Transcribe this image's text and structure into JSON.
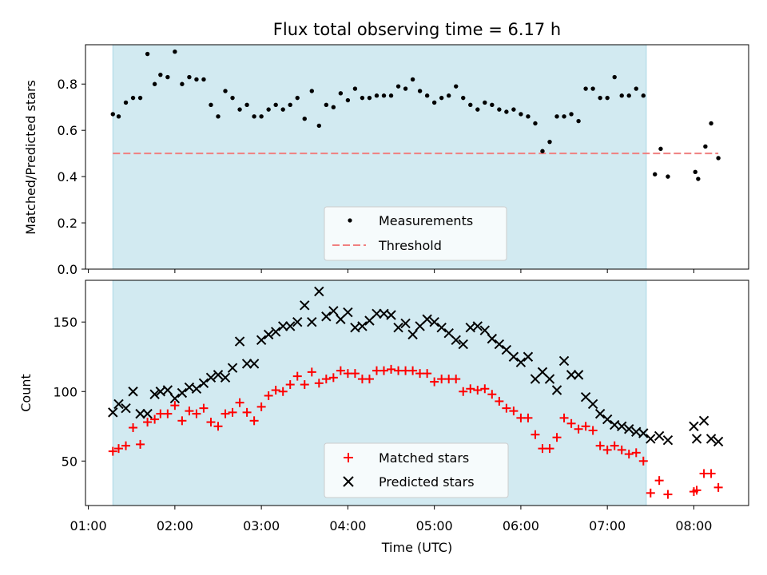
{
  "chart_data": [
    {
      "type": "scatter",
      "title": "Flux total observing time = 6.17 h",
      "ylabel": "Matched/Predicted stars",
      "xlabel": "",
      "ylim": [
        0,
        0.97
      ],
      "yticks": [
        "0.0",
        "0.2",
        "0.4",
        "0.6",
        "0.8"
      ],
      "grid": false,
      "legend_position": "bottom-center",
      "shaded_interval": [
        "01:17",
        "07:27"
      ],
      "shade_color": "#add8e6",
      "series": [
        {
          "name": "Measurements",
          "marker": "dot",
          "color": "#000000",
          "points": [
            [
              "01:17",
              0.67
            ],
            [
              "01:21",
              0.66
            ],
            [
              "01:26",
              0.72
            ],
            [
              "01:31",
              0.74
            ],
            [
              "01:36",
              0.74
            ],
            [
              "01:41",
              0.93
            ],
            [
              "01:46",
              0.8
            ],
            [
              "01:50",
              0.84
            ],
            [
              "01:55",
              0.83
            ],
            [
              "02:00",
              0.94
            ],
            [
              "02:05",
              0.8
            ],
            [
              "02:10",
              0.83
            ],
            [
              "02:15",
              0.82
            ],
            [
              "02:20",
              0.82
            ],
            [
              "02:25",
              0.71
            ],
            [
              "02:30",
              0.66
            ],
            [
              "02:35",
              0.77
            ],
            [
              "02:40",
              0.74
            ],
            [
              "02:45",
              0.69
            ],
            [
              "02:50",
              0.71
            ],
            [
              "02:55",
              0.66
            ],
            [
              "03:00",
              0.66
            ],
            [
              "03:05",
              0.69
            ],
            [
              "03:10",
              0.71
            ],
            [
              "03:15",
              0.69
            ],
            [
              "03:20",
              0.71
            ],
            [
              "03:25",
              0.74
            ],
            [
              "03:30",
              0.65
            ],
            [
              "03:35",
              0.77
            ],
            [
              "03:40",
              0.62
            ],
            [
              "03:45",
              0.71
            ],
            [
              "03:50",
              0.7
            ],
            [
              "03:55",
              0.76
            ],
            [
              "04:00",
              0.73
            ],
            [
              "04:05",
              0.78
            ],
            [
              "04:10",
              0.74
            ],
            [
              "04:15",
              0.74
            ],
            [
              "04:20",
              0.75
            ],
            [
              "04:25",
              0.75
            ],
            [
              "04:30",
              0.75
            ],
            [
              "04:35",
              0.79
            ],
            [
              "04:40",
              0.78
            ],
            [
              "04:45",
              0.82
            ],
            [
              "04:50",
              0.77
            ],
            [
              "04:55",
              0.75
            ],
            [
              "05:00",
              0.72
            ],
            [
              "05:05",
              0.74
            ],
            [
              "05:10",
              0.75
            ],
            [
              "05:15",
              0.79
            ],
            [
              "05:20",
              0.74
            ],
            [
              "05:25",
              0.71
            ],
            [
              "05:30",
              0.69
            ],
            [
              "05:35",
              0.72
            ],
            [
              "05:40",
              0.71
            ],
            [
              "05:45",
              0.69
            ],
            [
              "05:50",
              0.68
            ],
            [
              "05:55",
              0.69
            ],
            [
              "06:00",
              0.67
            ],
            [
              "06:05",
              0.66
            ],
            [
              "06:10",
              0.63
            ],
            [
              "06:15",
              0.51
            ],
            [
              "06:20",
              0.55
            ],
            [
              "06:25",
              0.66
            ],
            [
              "06:30",
              0.66
            ],
            [
              "06:35",
              0.67
            ],
            [
              "06:40",
              0.64
            ],
            [
              "06:45",
              0.78
            ],
            [
              "06:50",
              0.78
            ],
            [
              "06:55",
              0.74
            ],
            [
              "07:00",
              0.74
            ],
            [
              "07:05",
              0.83
            ],
            [
              "07:10",
              0.75
            ],
            [
              "07:15",
              0.75
            ],
            [
              "07:20",
              0.78
            ],
            [
              "07:25",
              0.75
            ],
            [
              "07:33",
              0.41
            ],
            [
              "07:37",
              0.52
            ],
            [
              "07:42",
              0.4
            ],
            [
              "08:01",
              0.42
            ],
            [
              "08:03",
              0.39
            ],
            [
              "08:08",
              0.53
            ],
            [
              "08:12",
              0.63
            ],
            [
              "08:17",
              0.48
            ]
          ]
        },
        {
          "name": "Threshold",
          "marker": "dashed-line",
          "color": "#f08080",
          "points": [
            [
              "01:17",
              0.5
            ],
            [
              "08:17",
              0.5
            ]
          ]
        }
      ]
    },
    {
      "type": "scatter",
      "title": "",
      "xlabel": "Time (UTC)",
      "ylabel": "Count",
      "ylim": [
        18,
        180
      ],
      "yticks": [
        "50",
        "100",
        "150"
      ],
      "xlim": [
        "00:58",
        "08:38"
      ],
      "xticks": [
        "01:00",
        "02:00",
        "03:00",
        "04:00",
        "05:00",
        "06:00",
        "07:00",
        "08:00"
      ],
      "grid": false,
      "legend_position": "bottom-center",
      "shaded_interval": [
        "01:17",
        "07:27"
      ],
      "shade_color": "#add8e6",
      "series": [
        {
          "name": "Matched stars",
          "marker": "plus",
          "color": "#ff0000",
          "points": [
            [
              "01:17",
              57
            ],
            [
              "01:21",
              59
            ],
            [
              "01:26",
              61
            ],
            [
              "01:31",
              74
            ],
            [
              "01:36",
              62
            ],
            [
              "01:41",
              78
            ],
            [
              "01:46",
              80
            ],
            [
              "01:50",
              84
            ],
            [
              "01:55",
              84
            ],
            [
              "02:00",
              90
            ],
            [
              "02:05",
              79
            ],
            [
              "02:10",
              86
            ],
            [
              "02:15",
              84
            ],
            [
              "02:20",
              88
            ],
            [
              "02:25",
              78
            ],
            [
              "02:30",
              75
            ],
            [
              "02:35",
              84
            ],
            [
              "02:40",
              85
            ],
            [
              "02:45",
              92
            ],
            [
              "02:50",
              85
            ],
            [
              "02:55",
              79
            ],
            [
              "03:00",
              89
            ],
            [
              "03:05",
              97
            ],
            [
              "03:10",
              101
            ],
            [
              "03:15",
              100
            ],
            [
              "03:20",
              105
            ],
            [
              "03:25",
              111
            ],
            [
              "03:30",
              105
            ],
            [
              "03:35",
              114
            ],
            [
              "03:40",
              106
            ],
            [
              "03:45",
              109
            ],
            [
              "03:50",
              110
            ],
            [
              "03:55",
              115
            ],
            [
              "04:00",
              113
            ],
            [
              "04:05",
              113
            ],
            [
              "04:10",
              109
            ],
            [
              "04:15",
              109
            ],
            [
              "04:20",
              115
            ],
            [
              "04:25",
              115
            ],
            [
              "04:30",
              116
            ],
            [
              "04:35",
              115
            ],
            [
              "04:40",
              115
            ],
            [
              "04:45",
              115
            ],
            [
              "04:50",
              113
            ],
            [
              "04:55",
              113
            ],
            [
              "05:00",
              107
            ],
            [
              "05:05",
              109
            ],
            [
              "05:10",
              109
            ],
            [
              "05:15",
              109
            ],
            [
              "05:20",
              100
            ],
            [
              "05:25",
              102
            ],
            [
              "05:30",
              101
            ],
            [
              "05:35",
              102
            ],
            [
              "05:40",
              98
            ],
            [
              "05:45",
              93
            ],
            [
              "05:50",
              88
            ],
            [
              "05:55",
              86
            ],
            [
              "06:00",
              81
            ],
            [
              "06:05",
              81
            ],
            [
              "06:10",
              69
            ],
            [
              "06:15",
              59
            ],
            [
              "06:20",
              59
            ],
            [
              "06:25",
              67
            ],
            [
              "06:30",
              81
            ],
            [
              "06:35",
              77
            ],
            [
              "06:40",
              73
            ],
            [
              "06:45",
              75
            ],
            [
              "06:50",
              72
            ],
            [
              "06:55",
              61
            ],
            [
              "07:00",
              58
            ],
            [
              "07:05",
              61
            ],
            [
              "07:10",
              58
            ],
            [
              "07:15",
              55
            ],
            [
              "07:20",
              56
            ],
            [
              "07:25",
              50
            ],
            [
              "07:30",
              27
            ],
            [
              "07:36",
              36
            ],
            [
              "07:42",
              26
            ],
            [
              "08:00",
              28
            ],
            [
              "08:02",
              29
            ],
            [
              "08:07",
              41
            ],
            [
              "08:12",
              41
            ],
            [
              "08:17",
              31
            ]
          ]
        },
        {
          "name": "Predicted stars",
          "marker": "x",
          "color": "#000000",
          "points": [
            [
              "01:17",
              85
            ],
            [
              "01:21",
              91
            ],
            [
              "01:26",
              88
            ],
            [
              "01:31",
              100
            ],
            [
              "01:36",
              84
            ],
            [
              "01:41",
              84
            ],
            [
              "01:46",
              98
            ],
            [
              "01:50",
              100
            ],
            [
              "01:55",
              101
            ],
            [
              "02:00",
              95
            ],
            [
              "02:05",
              99
            ],
            [
              "02:10",
              103
            ],
            [
              "02:15",
              102
            ],
            [
              "02:20",
              106
            ],
            [
              "02:25",
              110
            ],
            [
              "02:30",
              112
            ],
            [
              "02:35",
              110
            ],
            [
              "02:40",
              117
            ],
            [
              "02:45",
              136
            ],
            [
              "02:50",
              120
            ],
            [
              "02:55",
              120
            ],
            [
              "03:00",
              137
            ],
            [
              "03:05",
              141
            ],
            [
              "03:10",
              143
            ],
            [
              "03:15",
              147
            ],
            [
              "03:20",
              147
            ],
            [
              "03:25",
              150
            ],
            [
              "03:30",
              162
            ],
            [
              "03:35",
              150
            ],
            [
              "03:40",
              172
            ],
            [
              "03:45",
              154
            ],
            [
              "03:50",
              158
            ],
            [
              "03:55",
              152
            ],
            [
              "04:00",
              157
            ],
            [
              "04:05",
              146
            ],
            [
              "04:10",
              147
            ],
            [
              "04:15",
              151
            ],
            [
              "04:20",
              156
            ],
            [
              "04:25",
              156
            ],
            [
              "04:30",
              155
            ],
            [
              "04:35",
              146
            ],
            [
              "04:40",
              149
            ],
            [
              "04:45",
              141
            ],
            [
              "04:50",
              147
            ],
            [
              "04:55",
              152
            ],
            [
              "05:00",
              150
            ],
            [
              "05:05",
              146
            ],
            [
              "05:10",
              142
            ],
            [
              "05:15",
              137
            ],
            [
              "05:20",
              134
            ],
            [
              "05:25",
              146
            ],
            [
              "05:30",
              147
            ],
            [
              "05:35",
              144
            ],
            [
              "05:40",
              138
            ],
            [
              "05:45",
              134
            ],
            [
              "05:50",
              130
            ],
            [
              "05:55",
              125
            ],
            [
              "06:00",
              121
            ],
            [
              "06:05",
              125
            ],
            [
              "06:10",
              109
            ],
            [
              "06:15",
              114
            ],
            [
              "06:20",
              109
            ],
            [
              "06:25",
              101
            ],
            [
              "06:30",
              122
            ],
            [
              "06:35",
              112
            ],
            [
              "06:40",
              112
            ],
            [
              "06:45",
              96
            ],
            [
              "06:50",
              91
            ],
            [
              "06:55",
              84
            ],
            [
              "07:00",
              80
            ],
            [
              "07:05",
              76
            ],
            [
              "07:10",
              75
            ],
            [
              "07:15",
              73
            ],
            [
              "07:20",
              71
            ],
            [
              "07:25",
              70
            ],
            [
              "07:30",
              66
            ],
            [
              "07:36",
              68
            ],
            [
              "07:42",
              65
            ],
            [
              "08:00",
              75
            ],
            [
              "08:02",
              66
            ],
            [
              "08:07",
              79
            ],
            [
              "08:12",
              66
            ],
            [
              "08:17",
              64
            ]
          ]
        }
      ]
    }
  ]
}
